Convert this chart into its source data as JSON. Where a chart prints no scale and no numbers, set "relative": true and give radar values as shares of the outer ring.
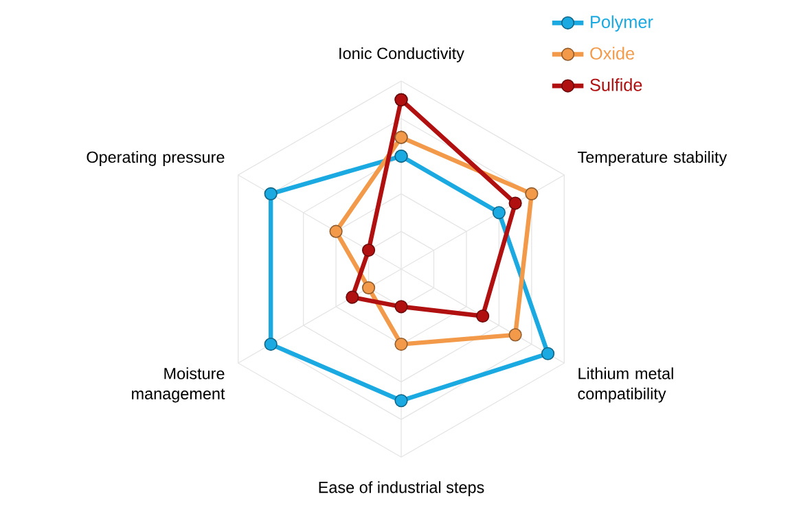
{
  "chart_data": {
    "type": "radar",
    "relative": true,
    "grid": true,
    "legend": "top right",
    "marker": "circle",
    "categories": [
      "Ionic Conductivity",
      "Temperature stability",
      "Lithium metal compatibility",
      "Ease of industrial steps",
      "Moisture management",
      "Operating pressure"
    ],
    "series": [
      {
        "name": "Polymer",
        "color": "#1aa9e0",
        "values": [
          0.6,
          0.6,
          0.9,
          0.7,
          0.8,
          0.8
        ]
      },
      {
        "name": "Oxide",
        "color": "#f39a4a",
        "values": [
          0.7,
          0.8,
          0.7,
          0.4,
          0.2,
          0.4
        ]
      },
      {
        "name": "Sulfide",
        "color": "#b01010",
        "values": [
          0.9,
          0.7,
          0.5,
          0.2,
          0.3,
          0.2
        ]
      }
    ]
  }
}
